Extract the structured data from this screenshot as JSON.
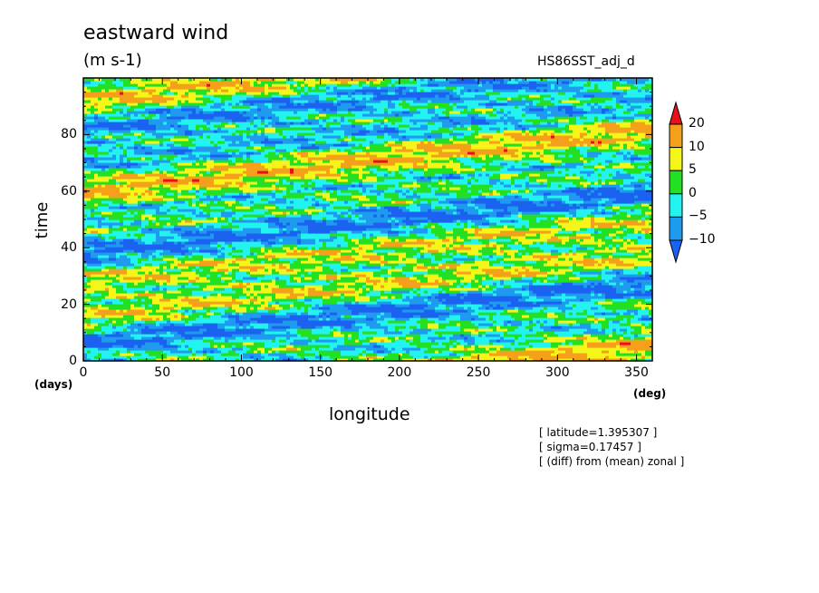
{
  "chart_data": {
    "type": "heatmap",
    "title": "eastward wind",
    "units": "(m s-1)",
    "dataset": "HS86SST_adj_d",
    "xlabel": "longitude",
    "xunit": "(deg)",
    "ylabel": "time",
    "yunit": "(days)",
    "xlim": [
      0,
      360
    ],
    "ylim": [
      0,
      100
    ],
    "xticks": [
      0,
      50,
      100,
      150,
      200,
      250,
      300,
      350
    ],
    "yticks": [
      0,
      20,
      40,
      60,
      80
    ],
    "colorbar": {
      "levels": [
        -10,
        -5,
        0,
        5,
        10,
        20
      ],
      "labels": [
        "20",
        "10",
        "5",
        "0",
        "−5",
        "−10"
      ],
      "colors": [
        "#1b62f0",
        "#1e9bef",
        "#22f2f0",
        "#24e023",
        "#f5f519",
        "#f5a01a",
        "#e8101a"
      ],
      "extend": "both"
    },
    "annotations": [
      "[ latitude=1.395307 ]",
      "[ sigma=0.17457 ]",
      "[ (diff) from (mean) zonal ]"
    ]
  }
}
